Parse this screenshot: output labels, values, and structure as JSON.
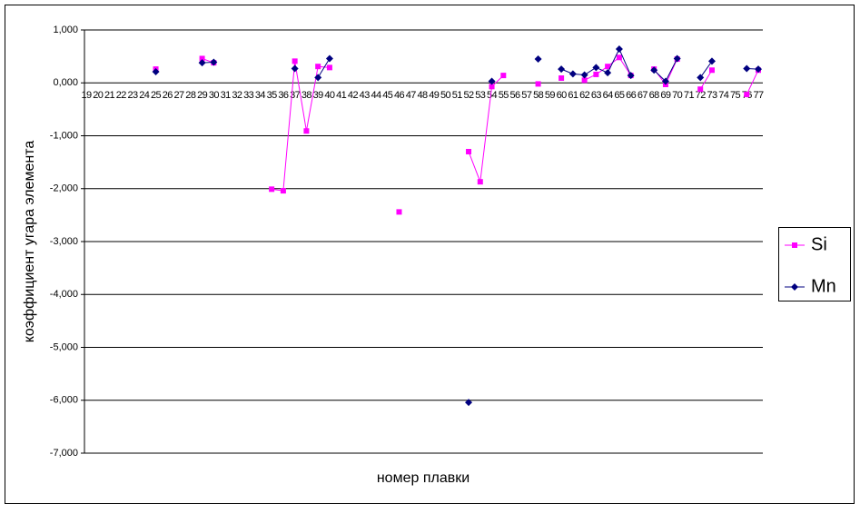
{
  "chart_data": {
    "type": "line",
    "x_label": "номер плавки",
    "y_label": "коэффициент угара элемента",
    "categories": [
      "19",
      "20",
      "21",
      "22",
      "23",
      "24",
      "25",
      "26",
      "27",
      "28",
      "29",
      "30",
      "31",
      "32",
      "33",
      "34",
      "35",
      "36",
      "37",
      "38",
      "39",
      "40",
      "41",
      "42",
      "43",
      "44",
      "45",
      "46",
      "47",
      "48",
      "49",
      "50",
      "51",
      "52",
      "53",
      "54",
      "55",
      "56",
      "57",
      "58",
      "59",
      "60",
      "61",
      "62",
      "63",
      "64",
      "65",
      "66",
      "67",
      "68",
      "69",
      "70",
      "71",
      "72",
      "73",
      "74",
      "75",
      "76",
      "77"
    ],
    "series": [
      {
        "name": "Si",
        "color": "#ff00ff",
        "marker": "square",
        "values": [
          null,
          null,
          null,
          null,
          null,
          null,
          0.26,
          null,
          null,
          null,
          0.46,
          0.38,
          null,
          null,
          null,
          null,
          -2.01,
          -2.04,
          0.41,
          -0.91,
          0.31,
          0.29,
          null,
          null,
          null,
          null,
          null,
          -2.44,
          null,
          null,
          null,
          null,
          null,
          -1.3,
          -1.87,
          -0.07,
          0.14,
          null,
          null,
          -0.02,
          null,
          0.09,
          null,
          0.05,
          0.16,
          0.31,
          0.48,
          0.14,
          null,
          0.26,
          -0.03,
          0.45,
          null,
          -0.12,
          0.24,
          null,
          null,
          -0.22,
          0.24
        ]
      },
      {
        "name": "Mn",
        "color": "#000080",
        "marker": "diamond",
        "values": [
          null,
          null,
          null,
          null,
          null,
          null,
          0.21,
          null,
          null,
          null,
          0.38,
          0.39,
          null,
          null,
          null,
          null,
          null,
          null,
          0.27,
          null,
          0.1,
          0.46,
          null,
          null,
          null,
          null,
          null,
          null,
          null,
          null,
          null,
          null,
          null,
          -6.04,
          null,
          0.03,
          null,
          null,
          null,
          0.45,
          null,
          0.26,
          0.17,
          0.15,
          0.29,
          0.19,
          0.64,
          0.14,
          null,
          0.24,
          0.03,
          0.46,
          null,
          0.1,
          0.41,
          null,
          null,
          0.27,
          0.26
        ]
      }
    ],
    "ylim": [
      -7,
      1
    ],
    "yticks": [
      {
        "value": 1,
        "label": "1,000"
      },
      {
        "value": 0,
        "label": "0,000"
      },
      {
        "value": -1,
        "label": "-1,000"
      },
      {
        "value": -2,
        "label": "-2,000"
      },
      {
        "value": -3,
        "label": "-3,000"
      },
      {
        "value": -4,
        "label": "-4,000"
      },
      {
        "value": -5,
        "label": "-5,000"
      },
      {
        "value": -6,
        "label": "-6,000"
      },
      {
        "value": -7,
        "label": "-7,000"
      }
    ],
    "grid": true,
    "legend": "right"
  }
}
